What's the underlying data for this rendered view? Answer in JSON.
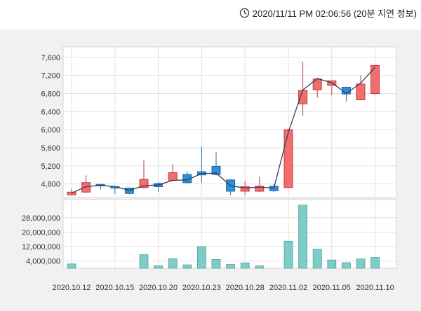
{
  "header": {
    "timestamp": "2020/11/11 PM 02:06:56 (20분 지연 정보)"
  },
  "icons": {
    "timestamp": "clock-icon"
  },
  "colors": {
    "up": "#f06e6e",
    "down": "#2d8fd5",
    "volume": "#7dcdc6",
    "line": "#3a3a5c"
  },
  "chart_data": {
    "type": "candlestick",
    "x_labels": [
      "2020.10.12",
      "2020.10.15",
      "2020.10.20",
      "2020.10.23",
      "2020.10.28",
      "2020.11.02",
      "2020.11.05",
      "2020.11.10"
    ],
    "price_ticks": [
      "7,600",
      "7,200",
      "6,800",
      "6,400",
      "6,000",
      "5,600",
      "5,200",
      "4,800"
    ],
    "price_tick_values": [
      7600,
      7200,
      6800,
      6400,
      6000,
      5600,
      5200,
      4800
    ],
    "price_range": [
      4500,
      7830
    ],
    "volume_ticks": [
      "28,000,000",
      "20,000,000",
      "12,000,000",
      "4,000,000"
    ],
    "volume_tick_values": [
      28000000,
      20000000,
      12000000,
      4000000
    ],
    "volume_range": [
      0,
      38000000
    ],
    "candles": [
      {
        "open": 4560,
        "close": 4620,
        "high": 4700,
        "low": 4540,
        "volume": 2400000
      },
      {
        "open": 4620,
        "close": 4830,
        "high": 4990,
        "low": 4600,
        "volume": 0
      },
      {
        "open": 4790,
        "close": 4760,
        "high": 4800,
        "low": 4680,
        "volume": 0
      },
      {
        "open": 4740,
        "close": 4720,
        "high": 4770,
        "low": 4580,
        "volume": 0
      },
      {
        "open": 4710,
        "close": 4590,
        "high": 4720,
        "low": 4570,
        "volume": 0
      },
      {
        "open": 4720,
        "close": 4900,
        "high": 5320,
        "low": 4700,
        "volume": 7500000
      },
      {
        "open": 4810,
        "close": 4740,
        "high": 4840,
        "low": 4630,
        "volume": 1400000
      },
      {
        "open": 4880,
        "close": 5050,
        "high": 5240,
        "low": 4860,
        "volume": 5300000
      },
      {
        "open": 5010,
        "close": 4830,
        "high": 5080,
        "low": 4810,
        "volume": 1900000
      },
      {
        "open": 5070,
        "close": 5000,
        "high": 5620,
        "low": 4830,
        "volume": 12000000
      },
      {
        "open": 5190,
        "close": 5010,
        "high": 5500,
        "low": 4990,
        "volume": 4900000
      },
      {
        "open": 4890,
        "close": 4640,
        "high": 4900,
        "low": 4560,
        "volume": 2100000
      },
      {
        "open": 4640,
        "close": 4740,
        "high": 4870,
        "low": 4550,
        "volume": 3000000
      },
      {
        "open": 4640,
        "close": 4750,
        "high": 4960,
        "low": 4620,
        "volume": 1300000
      },
      {
        "open": 4750,
        "close": 4650,
        "high": 4800,
        "low": 4620,
        "volume": 0
      },
      {
        "open": 4720,
        "close": 6000,
        "high": 6020,
        "low": 4720,
        "volume": 15000000
      },
      {
        "open": 6570,
        "close": 6870,
        "high": 7500,
        "low": 6310,
        "volume": 35000000
      },
      {
        "open": 6880,
        "close": 7120,
        "high": 7150,
        "low": 6710,
        "volume": 10500000
      },
      {
        "open": 6980,
        "close": 7080,
        "high": 7090,
        "low": 6760,
        "volume": 4600000
      },
      {
        "open": 6940,
        "close": 6790,
        "high": 6950,
        "low": 6620,
        "volume": 3100000
      },
      {
        "open": 6660,
        "close": 7010,
        "high": 7200,
        "low": 6650,
        "volume": 5200000
      },
      {
        "open": 6800,
        "close": 7420,
        "high": 7430,
        "low": 6780,
        "volume": 6000000
      }
    ],
    "moving_average": [
      4600,
      4740,
      4770,
      4740,
      4660,
      4760,
      4780,
      4880,
      4890,
      5030,
      5040,
      4760,
      4710,
      4730,
      4710,
      5950,
      6880,
      7130,
      7040,
      6800,
      7030,
      7380
    ]
  }
}
